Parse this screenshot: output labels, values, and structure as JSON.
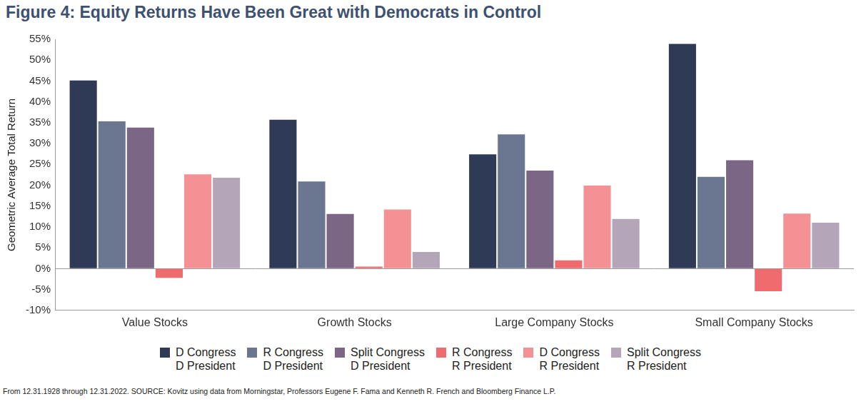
{
  "chart_data": {
    "type": "bar",
    "title": "Figure 4: Equity Returns Have Been Great with Democrats in Control",
    "y_label": "Geometric Average Total Return",
    "caption": "From 12.31.1928 through 12.31.2022. SOURCE: Kovitz using data from Morningstar, Professors Eugene F. Fama and Kenneth R. French and Bloomberg Finance L.P.",
    "categories": [
      "Value Stocks",
      "Growth Stocks",
      "Large Company Stocks",
      "Small Company Stocks"
    ],
    "series": [
      {
        "name": "D Congress\nD President",
        "color": "#2e3a56",
        "values": [
          45.1,
          35.7,
          27.4,
          53.9
        ]
      },
      {
        "name": "R Congress\nD President",
        "color": "#6b7690",
        "values": [
          35.3,
          20.9,
          32.2,
          22.0
        ]
      },
      {
        "name": "Split Congress\nD President",
        "color": "#7b6685",
        "values": [
          33.8,
          13.1,
          23.5,
          26.0
        ]
      },
      {
        "name": "R Congress\nR President",
        "color": "#ef6b6e",
        "values": [
          -2.2,
          0.5,
          2.0,
          -5.4
        ]
      },
      {
        "name": "D Congress\nR President",
        "color": "#f39195",
        "values": [
          22.6,
          14.2,
          19.9,
          13.2
        ]
      },
      {
        "name": "Split Congress\nR President",
        "color": "#b5a5b9",
        "values": [
          21.8,
          4.0,
          11.9,
          11.0
        ]
      }
    ],
    "ylim": [
      -10,
      55
    ],
    "yticks": [
      {
        "value": -10,
        "label": "-10%"
      },
      {
        "value": -5,
        "label": "-5%"
      },
      {
        "value": 0,
        "label": "0%"
      },
      {
        "value": 5,
        "label": "5%"
      },
      {
        "value": 10,
        "label": "10%"
      },
      {
        "value": 15,
        "label": "15%"
      },
      {
        "value": 20,
        "label": "20%"
      },
      {
        "value": 25,
        "label": "25%"
      },
      {
        "value": 30,
        "label": "30%"
      },
      {
        "value": 35,
        "label": "35%"
      },
      {
        "value": 40,
        "label": "40%"
      },
      {
        "value": 45,
        "label": "45%"
      },
      {
        "value": 50,
        "label": "50%"
      },
      {
        "value": 55,
        "label": "55%"
      }
    ],
    "grid": false,
    "legend": "bottom"
  }
}
